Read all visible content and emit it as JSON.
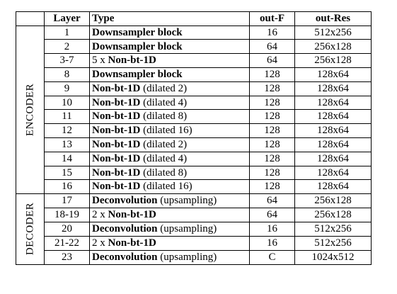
{
  "header": {
    "layer": "Layer",
    "type": "Type",
    "out_f": "out-F",
    "out_res": "out-Res"
  },
  "encoder_label": "ENCODER",
  "decoder_label": "DECODER",
  "encoder_rows": [
    {
      "layer": "1",
      "prefix": "",
      "bold": "Downsampler block",
      "suffix": "",
      "out_f": "16",
      "out_res": "512x256"
    },
    {
      "layer": "2",
      "prefix": "",
      "bold": "Downsampler block",
      "suffix": "",
      "out_f": "64",
      "out_res": "256x128"
    },
    {
      "layer": "3-7",
      "prefix": "5 x ",
      "bold": "Non-bt-1D",
      "suffix": "",
      "out_f": "64",
      "out_res": "256x128"
    },
    {
      "layer": "8",
      "prefix": "",
      "bold": "Downsampler block",
      "suffix": "",
      "out_f": "128",
      "out_res": "128x64"
    },
    {
      "layer": "9",
      "prefix": "",
      "bold": "Non-bt-1D",
      "suffix": " (dilated 2)",
      "out_f": "128",
      "out_res": "128x64"
    },
    {
      "layer": "10",
      "prefix": "",
      "bold": "Non-bt-1D",
      "suffix": " (dilated 4)",
      "out_f": "128",
      "out_res": "128x64"
    },
    {
      "layer": "11",
      "prefix": "",
      "bold": "Non-bt-1D",
      "suffix": " (dilated 8)",
      "out_f": "128",
      "out_res": "128x64"
    },
    {
      "layer": "12",
      "prefix": "",
      "bold": "Non-bt-1D",
      "suffix": " (dilated 16)",
      "out_f": "128",
      "out_res": "128x64"
    },
    {
      "layer": "13",
      "prefix": "",
      "bold": "Non-bt-1D",
      "suffix": " (dilated 2)",
      "out_f": "128",
      "out_res": "128x64"
    },
    {
      "layer": "14",
      "prefix": "",
      "bold": "Non-bt-1D",
      "suffix": " (dilated 4)",
      "out_f": "128",
      "out_res": "128x64"
    },
    {
      "layer": "15",
      "prefix": "",
      "bold": "Non-bt-1D",
      "suffix": " (dilated 8)",
      "out_f": "128",
      "out_res": "128x64"
    },
    {
      "layer": "16",
      "prefix": "",
      "bold": "Non-bt-1D",
      "suffix": " (dilated 16)",
      "out_f": "128",
      "out_res": "128x64"
    }
  ],
  "decoder_rows": [
    {
      "layer": "17",
      "prefix": "",
      "bold": "Deconvolution",
      "suffix": " (upsampling)",
      "out_f": "64",
      "out_res": "256x128"
    },
    {
      "layer": "18-19",
      "prefix": "2 x ",
      "bold": "Non-bt-1D",
      "suffix": "",
      "out_f": "64",
      "out_res": "256x128"
    },
    {
      "layer": "20",
      "prefix": "",
      "bold": "Deconvolution",
      "suffix": " (upsampling)",
      "out_f": "16",
      "out_res": "512x256"
    },
    {
      "layer": "21-22",
      "prefix": "2 x ",
      "bold": "Non-bt-1D",
      "suffix": "",
      "out_f": "16",
      "out_res": "512x256"
    },
    {
      "layer": "23",
      "prefix": "",
      "bold": "Deconvolution",
      "suffix": " (upsampling)",
      "out_f": "C",
      "out_res": "1024x512"
    }
  ]
}
